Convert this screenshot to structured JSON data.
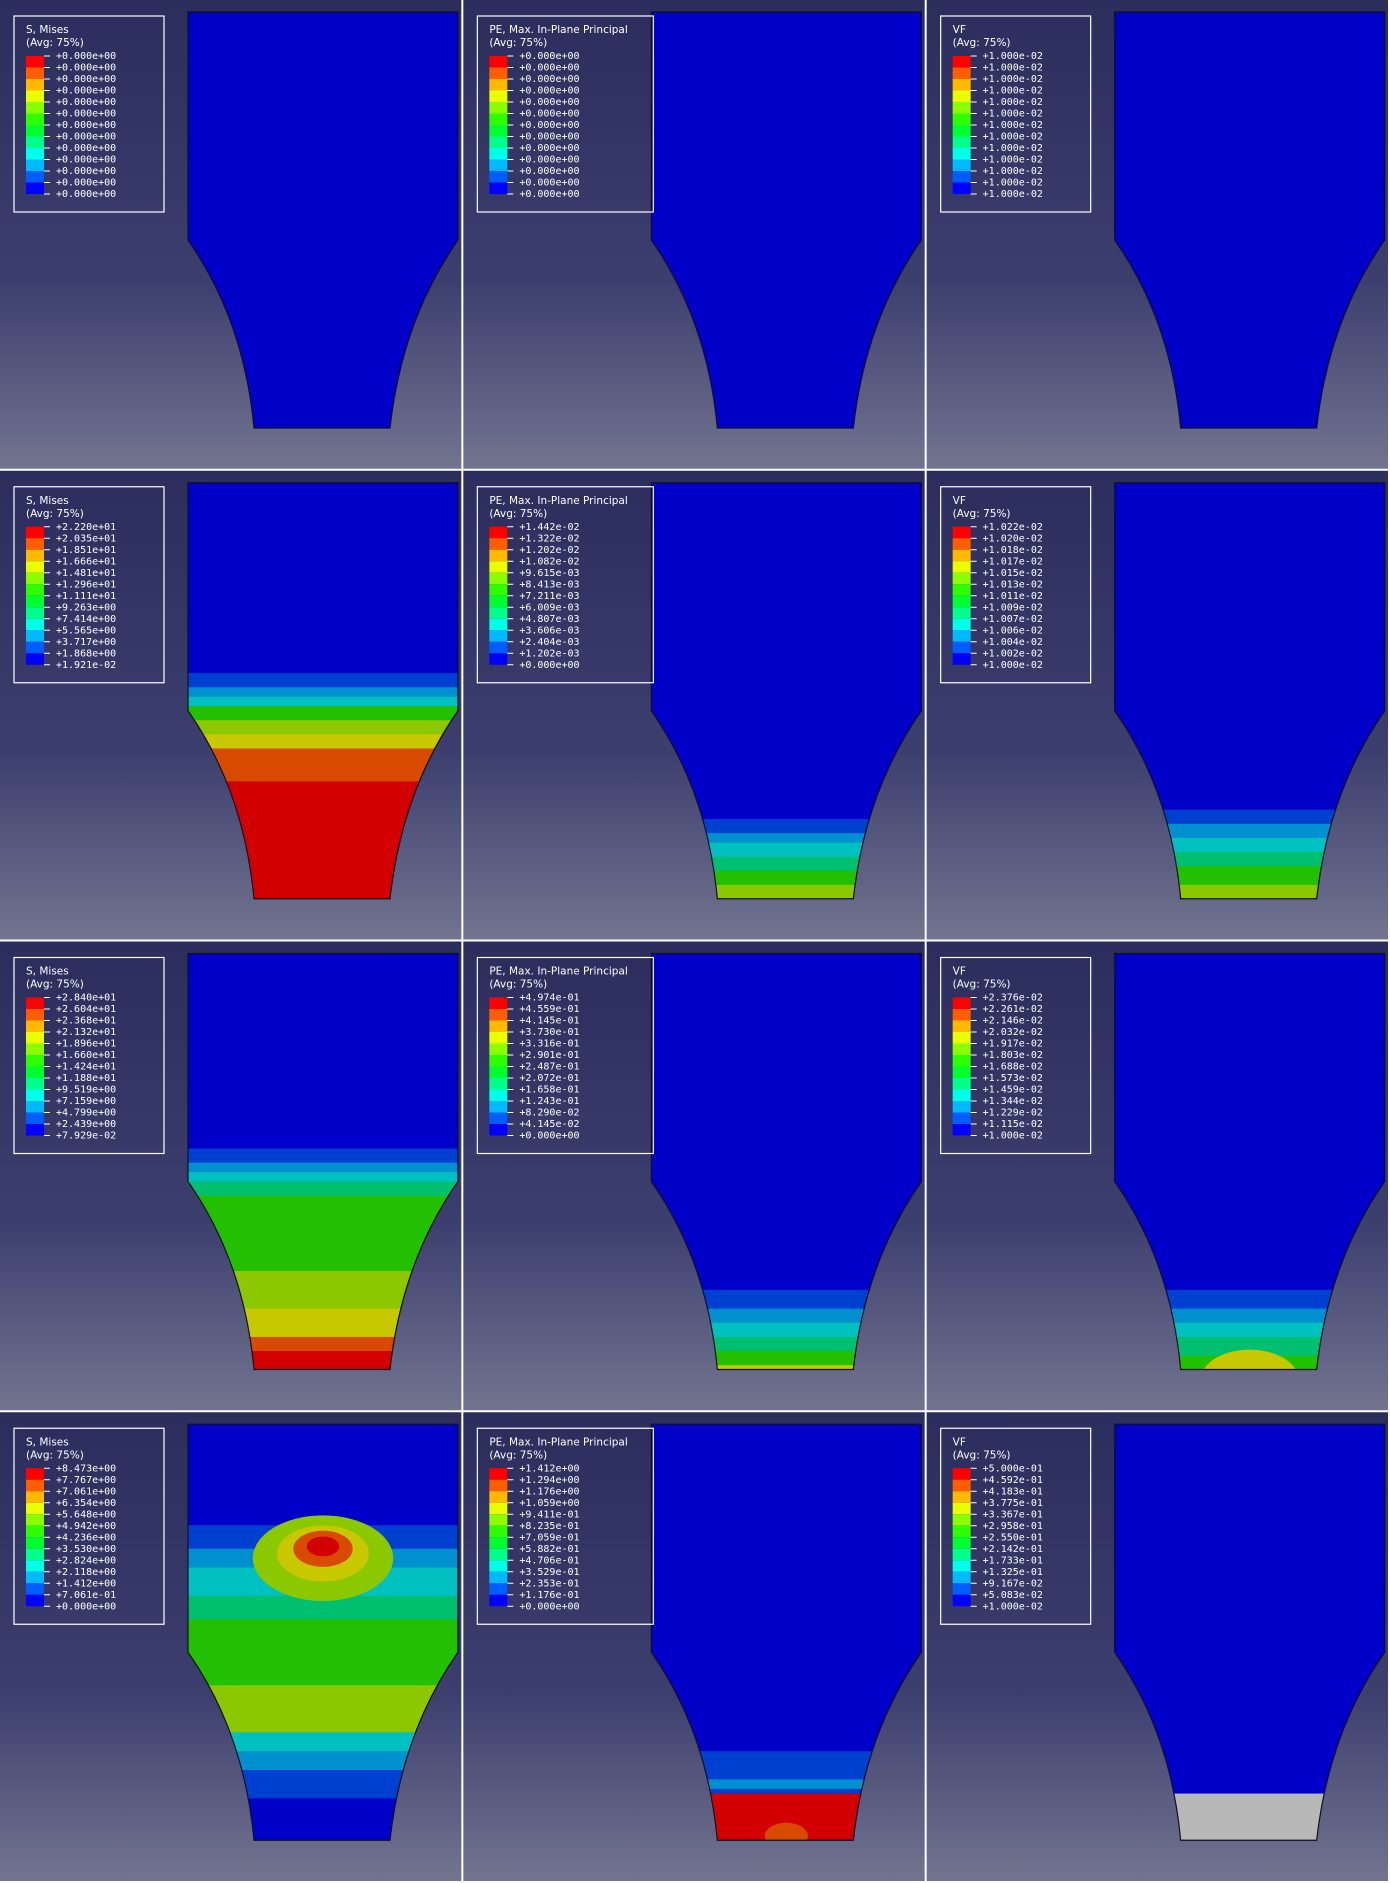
{
  "panels": [
    [
      {
        "title": "S, Mises",
        "avg": "(Avg: 75%)",
        "values": [
          "+0.000e+00",
          "+0.000e+00",
          "+0.000e+00",
          "+0.000e+00",
          "+0.000e+00",
          "+0.000e+00",
          "+0.000e+00",
          "+0.000e+00",
          "+0.000e+00",
          "+0.000e+00",
          "+0.000e+00",
          "+0.000e+00",
          "+0.000e+00"
        ]
      },
      {
        "title": "PE, Max. In-Plane Principal",
        "avg": "(Avg: 75%)",
        "values": [
          "+0.000e+00",
          "+0.000e+00",
          "+0.000e+00",
          "+0.000e+00",
          "+0.000e+00",
          "+0.000e+00",
          "+0.000e+00",
          "+0.000e+00",
          "+0.000e+00",
          "+0.000e+00",
          "+0.000e+00",
          "+0.000e+00",
          "+0.000e+00"
        ]
      },
      {
        "title": "VF",
        "avg": "(Avg: 75%)",
        "values": [
          "+1.000e-02",
          "+1.000e-02",
          "+1.000e-02",
          "+1.000e-02",
          "+1.000e-02",
          "+1.000e-02",
          "+1.000e-02",
          "+1.000e-02",
          "+1.000e-02",
          "+1.000e-02",
          "+1.000e-02",
          "+1.000e-02",
          "+1.000e-02"
        ]
      }
    ],
    [
      {
        "title": "S, Mises",
        "avg": "(Avg: 75%)",
        "values": [
          "+2.220e+01",
          "+2.035e+01",
          "+1.851e+01",
          "+1.666e+01",
          "+1.481e+01",
          "+1.296e+01",
          "+1.111e+01",
          "+9.263e+00",
          "+7.414e+00",
          "+5.565e+00",
          "+3.717e+00",
          "+1.868e+00",
          "+1.921e-02"
        ]
      },
      {
        "title": "PE, Max. In-Plane Principal",
        "avg": "(Avg: 75%)",
        "values": [
          "+1.442e-02",
          "+1.322e-02",
          "+1.202e-02",
          "+1.082e-02",
          "+9.615e-03",
          "+8.413e-03",
          "+7.211e-03",
          "+6.009e-03",
          "+4.807e-03",
          "+3.606e-03",
          "+2.404e-03",
          "+1.202e-03",
          "+0.000e+00"
        ]
      },
      {
        "title": "VF",
        "avg": "(Avg: 75%)",
        "values": [
          "+1.022e-02",
          "+1.020e-02",
          "+1.018e-02",
          "+1.017e-02",
          "+1.015e-02",
          "+1.013e-02",
          "+1.011e-02",
          "+1.009e-02",
          "+1.007e-02",
          "+1.006e-02",
          "+1.004e-02",
          "+1.002e-02",
          "+1.000e-02"
        ]
      }
    ],
    [
      {
        "title": "S, Mises",
        "avg": "(Avg: 75%)",
        "values": [
          "+2.840e+01",
          "+2.604e+01",
          "+2.368e+01",
          "+2.132e+01",
          "+1.896e+01",
          "+1.660e+01",
          "+1.424e+01",
          "+1.188e+01",
          "+9.519e+00",
          "+7.159e+00",
          "+4.799e+00",
          "+2.439e+00",
          "+7.929e-02"
        ]
      },
      {
        "title": "PE, Max. In-Plane Principal",
        "avg": "(Avg: 75%)",
        "values": [
          "+4.974e-01",
          "+4.559e-01",
          "+4.145e-01",
          "+3.730e-01",
          "+3.316e-01",
          "+2.901e-01",
          "+2.487e-01",
          "+2.072e-01",
          "+1.658e-01",
          "+1.243e-01",
          "+8.290e-02",
          "+4.145e-02",
          "+0.000e+00"
        ]
      },
      {
        "title": "VF",
        "avg": "(Avg: 75%)",
        "values": [
          "+2.376e-02",
          "+2.261e-02",
          "+2.146e-02",
          "+2.032e-02",
          "+1.917e-02",
          "+1.803e-02",
          "+1.688e-02",
          "+1.573e-02",
          "+1.459e-02",
          "+1.344e-02",
          "+1.229e-02",
          "+1.115e-02",
          "+1.000e-02"
        ]
      }
    ],
    [
      {
        "title": "S, Mises",
        "avg": "(Avg: 75%)",
        "values": [
          "+8.473e+00",
          "+7.767e+00",
          "+7.061e+00",
          "+6.354e+00",
          "+5.648e+00",
          "+4.942e+00",
          "+4.236e+00",
          "+3.530e+00",
          "+2.824e+00",
          "+2.118e+00",
          "+1.412e+00",
          "+7.061e-01",
          "+0.000e+00"
        ]
      },
      {
        "title": "PE, Max. In-Plane Principal",
        "avg": "(Avg: 75%)",
        "values": [
          "+1.412e+00",
          "+1.294e+00",
          "+1.176e+00",
          "+1.059e+00",
          "+9.411e-01",
          "+8.235e-01",
          "+7.059e-01",
          "+5.882e-01",
          "+4.706e-01",
          "+3.529e-01",
          "+2.353e-01",
          "+1.176e-01",
          "+0.000e+00"
        ]
      },
      {
        "title": "VF",
        "avg": "(Avg: 75%)",
        "values": [
          "+5.000e-01",
          "+4.592e-01",
          "+4.183e-01",
          "+3.775e-01",
          "+3.367e-01",
          "+2.958e-01",
          "+2.550e-01",
          "+2.142e-01",
          "+1.733e-01",
          "+1.325e-01",
          "+9.167e-02",
          "+5.083e-02",
          "+1.000e-02"
        ]
      }
    ]
  ]
}
